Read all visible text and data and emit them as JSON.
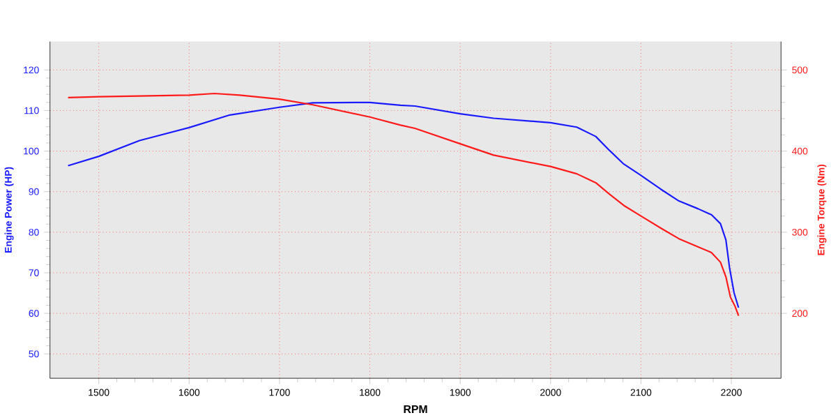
{
  "chart_data": {
    "type": "line",
    "xlabel": "RPM",
    "ylabel": "Engine Power (HP)",
    "y2label": "Engine Torque (Nm)",
    "xlim": [
      1446,
      2255
    ],
    "xticks": [
      1500,
      1600,
      1700,
      1800,
      1900,
      2000,
      2100,
      2200
    ],
    "ylim": [
      44,
      127
    ],
    "yticks": [
      50,
      60,
      70,
      80,
      90,
      100,
      110,
      120
    ],
    "y2lim": [
      120,
      535
    ],
    "y2ticks": [
      200,
      300,
      400,
      500
    ],
    "grid": true,
    "line_style": "solid",
    "series": [
      {
        "color": "#1a1aff",
        "x": [
          1466,
          1500,
          1545,
          1600,
          1645,
          1700,
          1737,
          1800,
          1834,
          1850,
          1900,
          1937,
          2000,
          2029,
          2050,
          2065,
          2081,
          2100,
          2122,
          2142,
          2163,
          2178,
          2188,
          2194,
          2198,
          2203,
          2208
        ],
        "values": [
          96.4,
          98.7,
          102.6,
          105.8,
          108.9,
          110.8,
          111.9,
          112,
          111.3,
          111.1,
          109.2,
          108.1,
          107.0,
          105.9,
          103.6,
          100.2,
          96.8,
          94.0,
          90.6,
          87.7,
          85.8,
          84.3,
          82.1,
          78.1,
          71.3,
          65.1,
          61.4
        ]
      },
      {
        "color": "#ff1a1a",
        "axis": "y2",
        "x": [
          1466,
          1500,
          1600,
          1628,
          1656,
          1700,
          1737,
          1800,
          1834,
          1850,
          1900,
          1937,
          2000,
          2029,
          2050,
          2065,
          2081,
          2100,
          2122,
          2142,
          2163,
          2178,
          2188,
          2194,
          2199,
          2204,
          2208
        ],
        "values": [
          466,
          467,
          469,
          471,
          469,
          464,
          457,
          442,
          432,
          428,
          409,
          395,
          381,
          372,
          361,
          347,
          333,
          320,
          305,
          292,
          282,
          275,
          263,
          245,
          220,
          209,
          197
        ]
      }
    ]
  }
}
